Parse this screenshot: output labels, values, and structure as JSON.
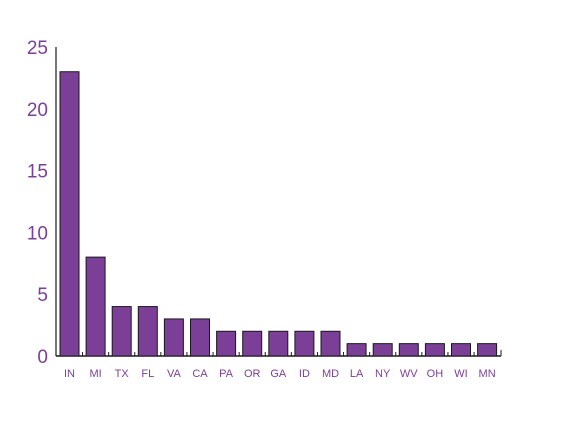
{
  "chart_data": {
    "type": "bar",
    "categories": [
      "IN",
      "MI",
      "TX",
      "FL",
      "VA",
      "CA",
      "PA",
      "OR",
      "GA",
      "ID",
      "MD",
      "LA",
      "NY",
      "WV",
      "OH",
      "WI",
      "MN"
    ],
    "values": [
      23,
      8,
      4,
      4,
      3,
      3,
      2,
      2,
      2,
      2,
      2,
      1,
      1,
      1,
      1,
      1,
      1
    ],
    "ylim": [
      0,
      25
    ],
    "yticks": [
      0,
      5,
      10,
      15,
      20,
      25
    ],
    "title": "",
    "xlabel": "",
    "ylabel": "",
    "grid": false,
    "legend": "none"
  },
  "colors": {
    "bar_fill": "#7b3f98",
    "bar_stroke": "#1a1a1a",
    "axis": "#1a1a1a",
    "tick_label": "#7b3f98"
  }
}
